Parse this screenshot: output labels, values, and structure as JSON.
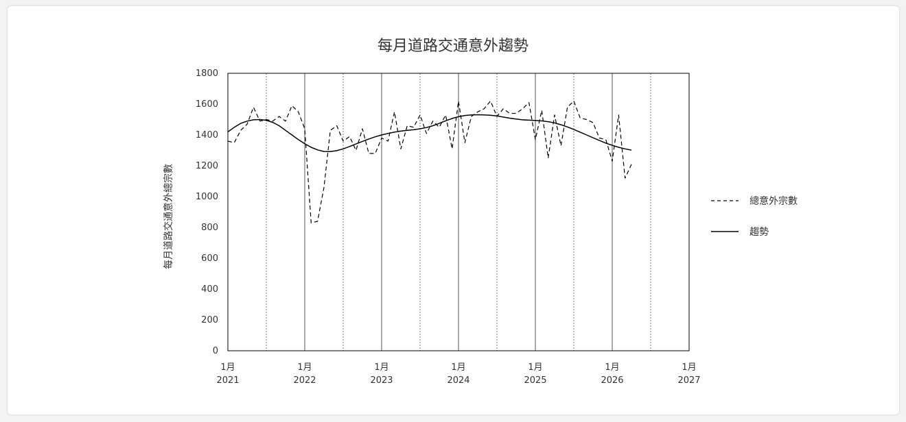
{
  "chart_data": {
    "type": "line",
    "title": "每月道路交通意外趨勢",
    "ylabel": "每月道路交通意外總宗數",
    "xlabel": "",
    "ylim": [
      0,
      1800
    ],
    "yticks": [
      0,
      200,
      400,
      600,
      800,
      1000,
      1200,
      1400,
      1600,
      1800
    ],
    "x_start": "2021-01",
    "xlim": [
      "2021-01",
      "2027-01"
    ],
    "xtick_labels": [
      {
        "month": "1月",
        "year": "2021"
      },
      {
        "month": "1月",
        "year": "2022"
      },
      {
        "month": "1月",
        "year": "2023"
      },
      {
        "month": "1月",
        "year": "2024"
      },
      {
        "month": "1月",
        "year": "2025"
      },
      {
        "month": "1月",
        "year": "2026"
      },
      {
        "month": "1月",
        "year": "2027"
      }
    ],
    "grid": "vertical: solid at January, dotted at July",
    "legend_position": "right",
    "series": [
      {
        "name": "總意外宗數",
        "style": "dashed",
        "color": "#000000",
        "values": [
          1360,
          1350,
          1430,
          1470,
          1580,
          1490,
          1500,
          1490,
          1520,
          1490,
          1590,
          1550,
          1440,
          830,
          840,
          1060,
          1430,
          1460,
          1360,
          1390,
          1300,
          1440,
          1280,
          1280,
          1380,
          1360,
          1550,
          1310,
          1460,
          1450,
          1530,
          1410,
          1490,
          1450,
          1530,
          1310,
          1620,
          1350,
          1520,
          1550,
          1570,
          1620,
          1520,
          1570,
          1540,
          1540,
          1570,
          1610,
          1370,
          1560,
          1250,
          1530,
          1330,
          1580,
          1620,
          1510,
          1500,
          1480,
          1380,
          1370,
          1230,
          1530,
          1120,
          1210
        ]
      },
      {
        "name": "趨勢",
        "style": "solid",
        "color": "#000000",
        "values": [
          1420,
          1450,
          1475,
          1490,
          1498,
          1500,
          1495,
          1482,
          1460,
          1430,
          1400,
          1370,
          1343,
          1320,
          1303,
          1293,
          1292,
          1298,
          1310,
          1325,
          1342,
          1358,
          1374,
          1388,
          1400,
          1410,
          1418,
          1425,
          1430,
          1434,
          1440,
          1448,
          1460,
          1475,
          1492,
          1507,
          1518,
          1526,
          1530,
          1531,
          1530,
          1528,
          1523,
          1516,
          1509,
          1503,
          1498,
          1496,
          1494,
          1491,
          1486,
          1478,
          1466,
          1452,
          1436,
          1418,
          1400,
          1382,
          1364,
          1347,
          1333,
          1320,
          1310,
          1302
        ]
      }
    ]
  }
}
